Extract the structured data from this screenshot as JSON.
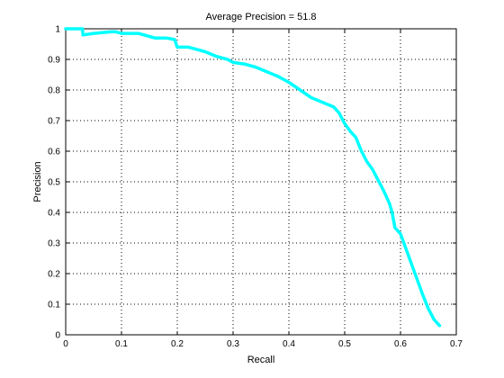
{
  "chart_data": {
    "type": "line",
    "title": "Average Precision = 51.8",
    "xlabel": "Recall",
    "ylabel": "Precision",
    "xlim": [
      0,
      0.7
    ],
    "ylim": [
      0,
      1
    ],
    "x_ticks": [
      "0",
      "0.1",
      "0.2",
      "0.3",
      "0.4",
      "0.5",
      "0.6",
      "0.7"
    ],
    "y_ticks": [
      "0",
      "0.1",
      "0.2",
      "0.3",
      "0.4",
      "0.5",
      "0.6",
      "0.7",
      "0.8",
      "0.9",
      "1"
    ],
    "grid": true,
    "line_color": "#00ffff",
    "series": [
      {
        "x": [
          0.0,
          0.03,
          0.031,
          0.05,
          0.08,
          0.09,
          0.1,
          0.13,
          0.15,
          0.16,
          0.18,
          0.195,
          0.2,
          0.22,
          0.23,
          0.25,
          0.27,
          0.29,
          0.3,
          0.32,
          0.34,
          0.36,
          0.38,
          0.4,
          0.42,
          0.44,
          0.46,
          0.48,
          0.49,
          0.5,
          0.51,
          0.52,
          0.53,
          0.54,
          0.55,
          0.56,
          0.57,
          0.58,
          0.585,
          0.59,
          0.6,
          0.61,
          0.62,
          0.63,
          0.64,
          0.65,
          0.66,
          0.67
        ],
        "y": [
          1.0,
          1.0,
          0.98,
          0.985,
          0.99,
          0.99,
          0.985,
          0.985,
          0.975,
          0.97,
          0.97,
          0.965,
          0.94,
          0.94,
          0.935,
          0.925,
          0.91,
          0.9,
          0.89,
          0.885,
          0.875,
          0.86,
          0.845,
          0.825,
          0.8,
          0.775,
          0.76,
          0.745,
          0.725,
          0.69,
          0.665,
          0.645,
          0.6,
          0.565,
          0.54,
          0.505,
          0.47,
          0.43,
          0.4,
          0.35,
          0.33,
          0.28,
          0.23,
          0.18,
          0.13,
          0.085,
          0.05,
          0.03
        ]
      }
    ]
  }
}
